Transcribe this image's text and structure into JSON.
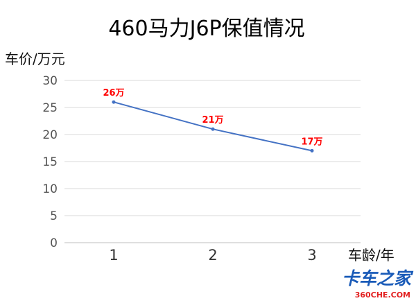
{
  "chart_data": {
    "type": "line",
    "title": "460马力J6P保值情况",
    "ylabel": "车价/万元",
    "xlabel": "车龄/年",
    "categories": [
      "1",
      "2",
      "3"
    ],
    "series": [
      {
        "values": [
          26,
          21,
          17
        ],
        "data_labels": [
          "26万",
          "21万",
          "17万"
        ]
      }
    ],
    "ylim": [
      0,
      30
    ],
    "yticks": [
      0,
      5,
      10,
      15,
      20,
      25,
      30
    ],
    "grid": true,
    "legend": "none"
  },
  "colors": {
    "series_line": "#4472c4",
    "data_label": "#ff0000"
  },
  "watermark": {
    "top": "卡车之家",
    "bottom": "360CHE.COM"
  }
}
